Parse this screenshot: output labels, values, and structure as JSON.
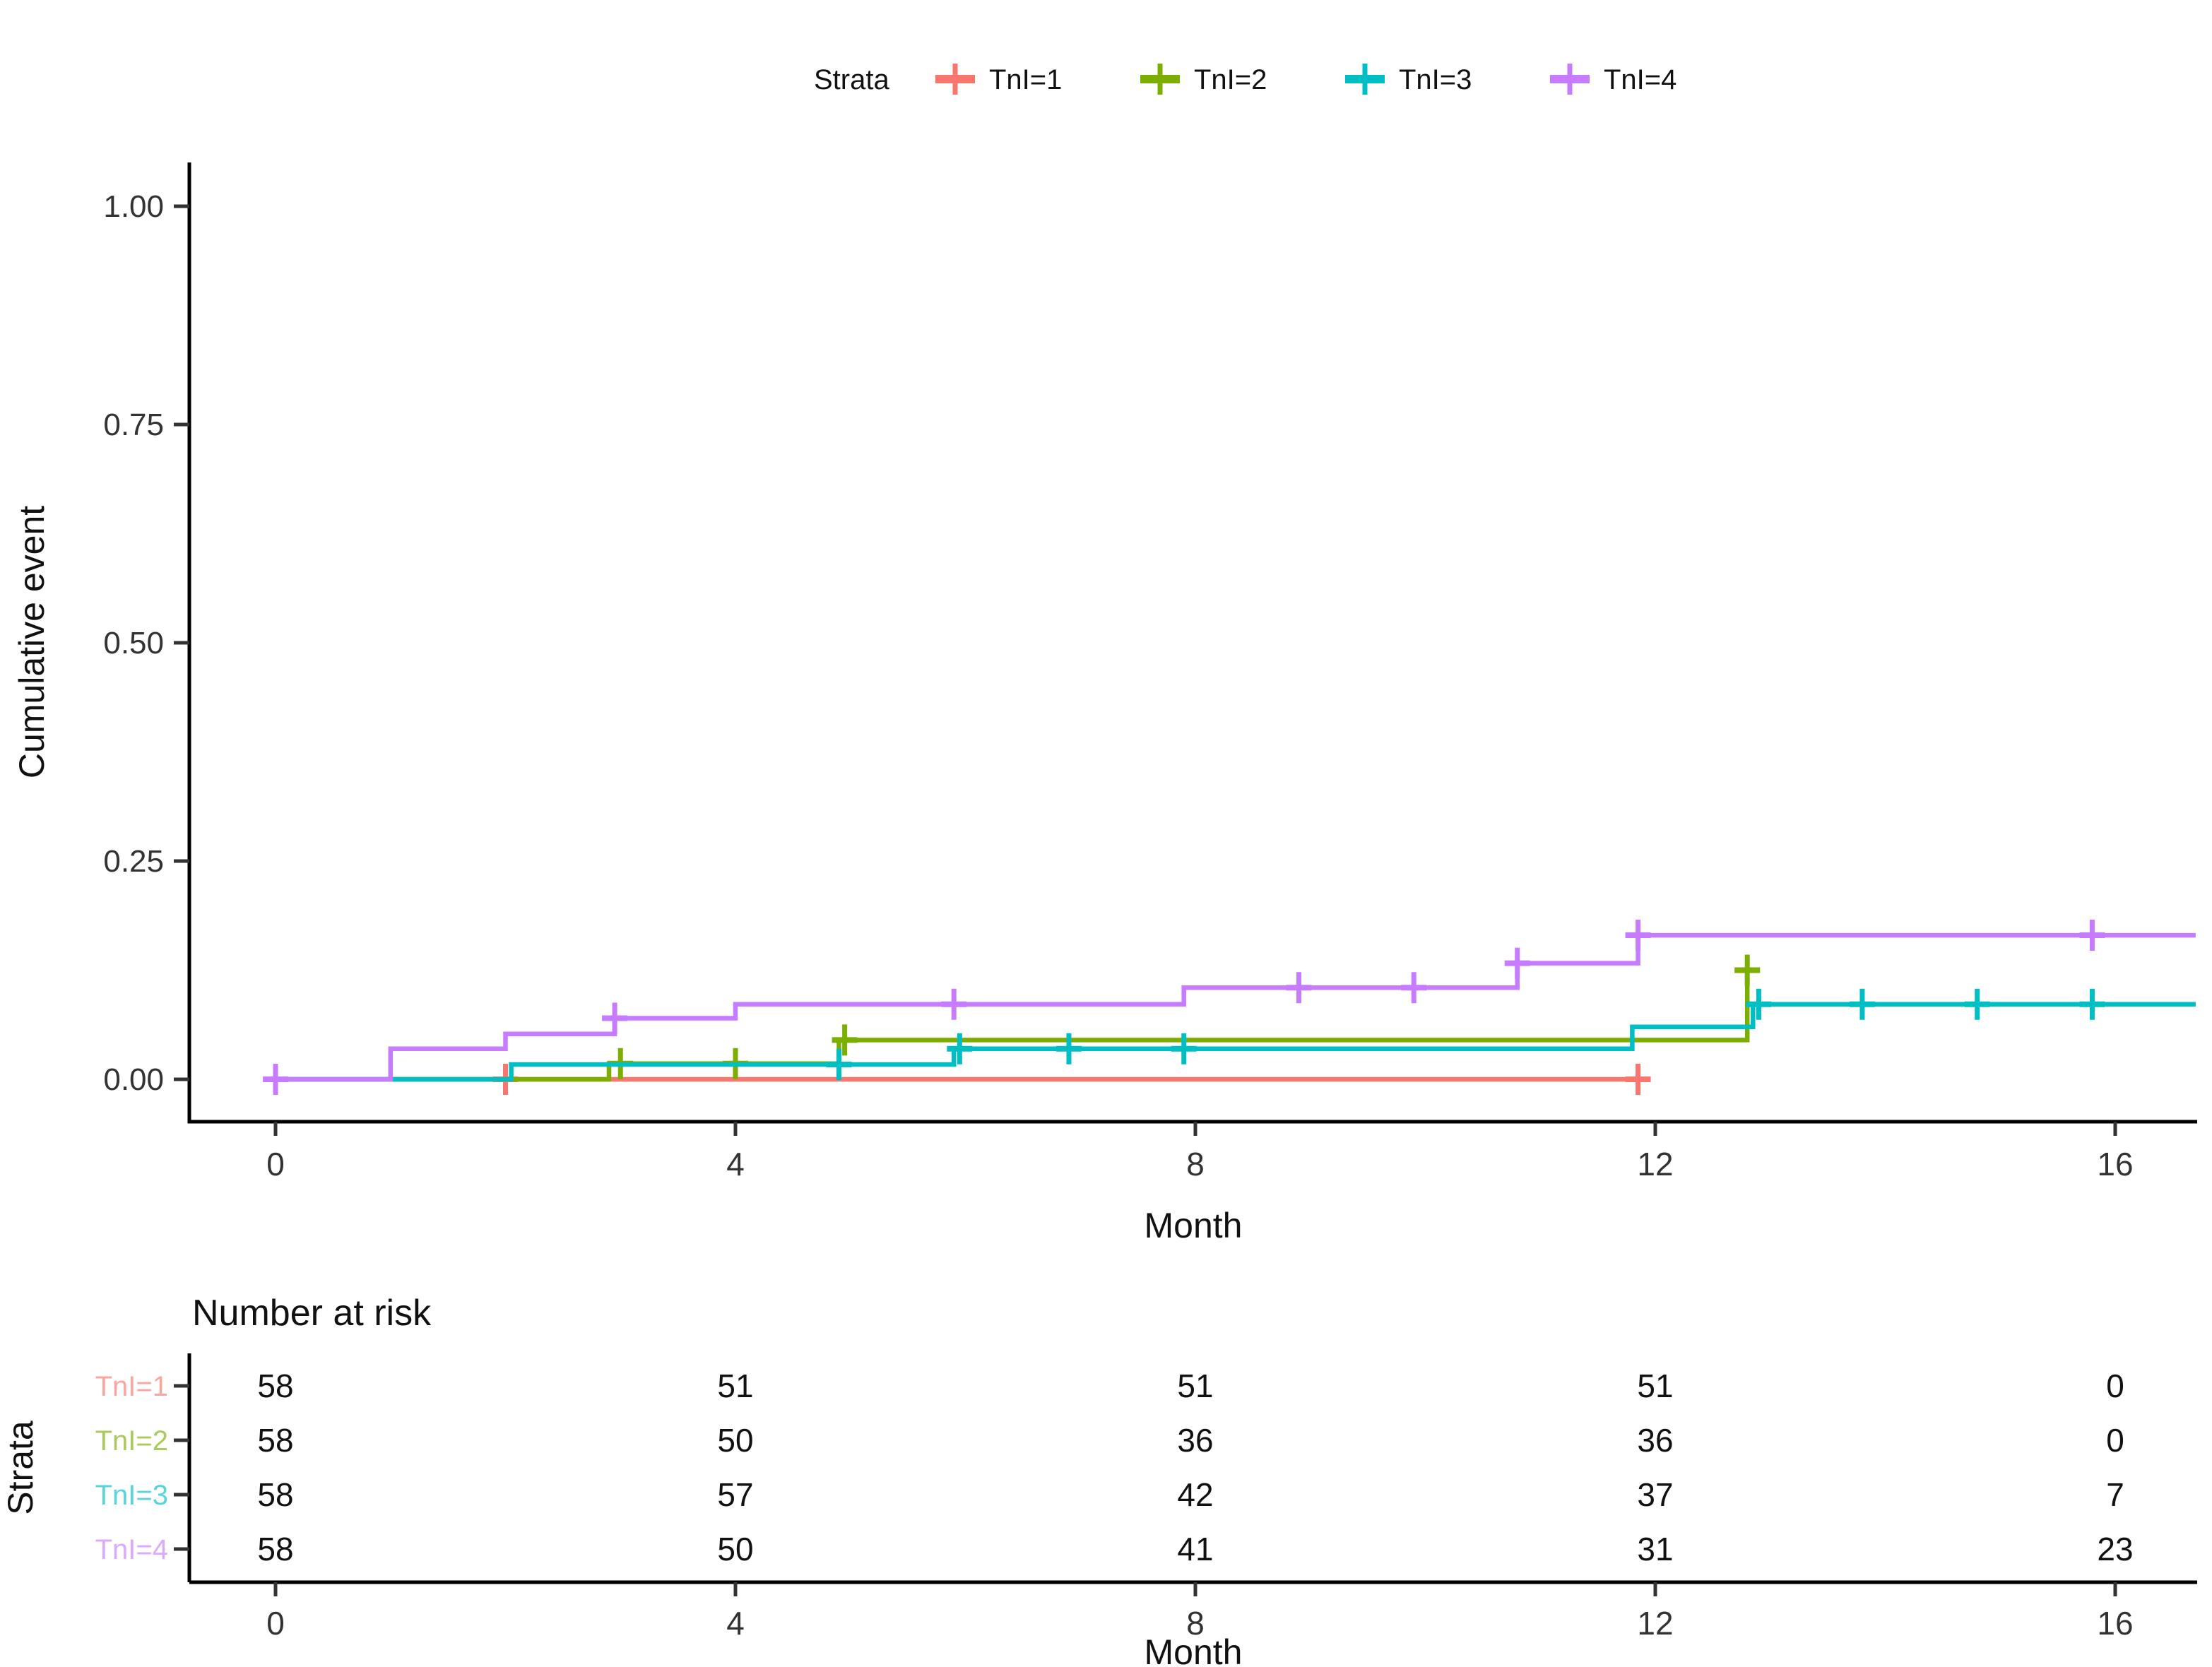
{
  "page": {
    "background": "#ffffff"
  },
  "chart_data": {
    "type": "line",
    "variant": "cumulative-incidence-step-kaplan-meier",
    "title": "",
    "xlabel": "Month",
    "ylabel": "Cumulative event",
    "xlim": [
      0,
      16.7
    ],
    "ylim": [
      0,
      1.0
    ],
    "x_ticks": [
      0,
      4,
      8,
      12,
      16
    ],
    "y_ticks": [
      0,
      0.25,
      0.5,
      0.75,
      1.0
    ],
    "y_tick_labels": [
      "0.00",
      "0.25",
      "0.50",
      "0.75",
      "1.00"
    ],
    "grid": false,
    "legend": {
      "title": "Strata",
      "position": "top"
    },
    "axis_color": "#000000",
    "tick_color": "#333333",
    "series": [
      {
        "name": "TnI=1",
        "color": "#F8766D",
        "step_points": [
          [
            0,
            0
          ],
          [
            11.85,
            0
          ]
        ],
        "censor_marks": [
          [
            2,
            0
          ],
          [
            11.85,
            0
          ]
        ]
      },
      {
        "name": "TnI=2",
        "color": "#7CAE00",
        "step_points": [
          [
            0,
            0
          ],
          [
            2.9,
            0
          ],
          [
            2.9,
            0.018
          ],
          [
            4.9,
            0.018
          ],
          [
            4.9,
            0.045
          ],
          [
            12.8,
            0.045
          ],
          [
            12.8,
            0.125
          ]
        ],
        "censor_marks": [
          [
            3,
            0.018
          ],
          [
            4,
            0.018
          ],
          [
            4.95,
            0.045
          ],
          [
            12.8,
            0.125
          ]
        ]
      },
      {
        "name": "TnI=3",
        "color": "#00BFC4",
        "step_points": [
          [
            0,
            0
          ],
          [
            2.05,
            0
          ],
          [
            2.05,
            0.017
          ],
          [
            5.9,
            0.017
          ],
          [
            5.9,
            0.035
          ],
          [
            11.8,
            0.035
          ],
          [
            11.8,
            0.06
          ],
          [
            12.85,
            0.06
          ],
          [
            12.85,
            0.086
          ],
          [
            16.7,
            0.086
          ]
        ],
        "censor_marks": [
          [
            4.9,
            0.017
          ],
          [
            5.95,
            0.035
          ],
          [
            6.9,
            0.035
          ],
          [
            7.9,
            0.035
          ],
          [
            12.9,
            0.086
          ],
          [
            13.8,
            0.086
          ],
          [
            14.8,
            0.086
          ],
          [
            15.8,
            0.086
          ]
        ]
      },
      {
        "name": "TnI=4",
        "color": "#C77CFF",
        "step_points": [
          [
            0,
            0
          ],
          [
            1,
            0
          ],
          [
            1,
            0.035
          ],
          [
            2,
            0.035
          ],
          [
            2,
            0.052
          ],
          [
            2.95,
            0.052
          ],
          [
            2.95,
            0.07
          ],
          [
            4,
            0.07
          ],
          [
            4,
            0.086
          ],
          [
            7.9,
            0.086
          ],
          [
            7.9,
            0.105
          ],
          [
            10.8,
            0.105
          ],
          [
            10.8,
            0.133
          ],
          [
            11.85,
            0.133
          ],
          [
            11.85,
            0.165
          ],
          [
            16.7,
            0.165
          ]
        ],
        "censor_marks": [
          [
            0,
            0
          ],
          [
            2.95,
            0.07
          ],
          [
            5.9,
            0.086
          ],
          [
            8.9,
            0.105
          ],
          [
            9.9,
            0.105
          ],
          [
            10.8,
            0.133
          ],
          [
            11.85,
            0.165
          ],
          [
            15.8,
            0.165
          ]
        ]
      }
    ],
    "number_at_risk": {
      "title": "Number at risk",
      "axis_title": "Strata",
      "x_axis_title": "Month",
      "x_ticks": [
        0,
        4,
        8,
        12,
        16
      ],
      "rows": [
        {
          "label": "TnI=1",
          "color": "#F8766D",
          "counts": [
            58,
            51,
            51,
            51,
            0
          ]
        },
        {
          "label": "TnI=2",
          "color": "#7CAE00",
          "counts": [
            58,
            50,
            36,
            36,
            0
          ]
        },
        {
          "label": "TnI=3",
          "color": "#00BFC4",
          "counts": [
            58,
            57,
            42,
            37,
            7
          ]
        },
        {
          "label": "TnI=4",
          "color": "#C77CFF",
          "counts": [
            58,
            50,
            41,
            31,
            23
          ]
        }
      ]
    }
  }
}
